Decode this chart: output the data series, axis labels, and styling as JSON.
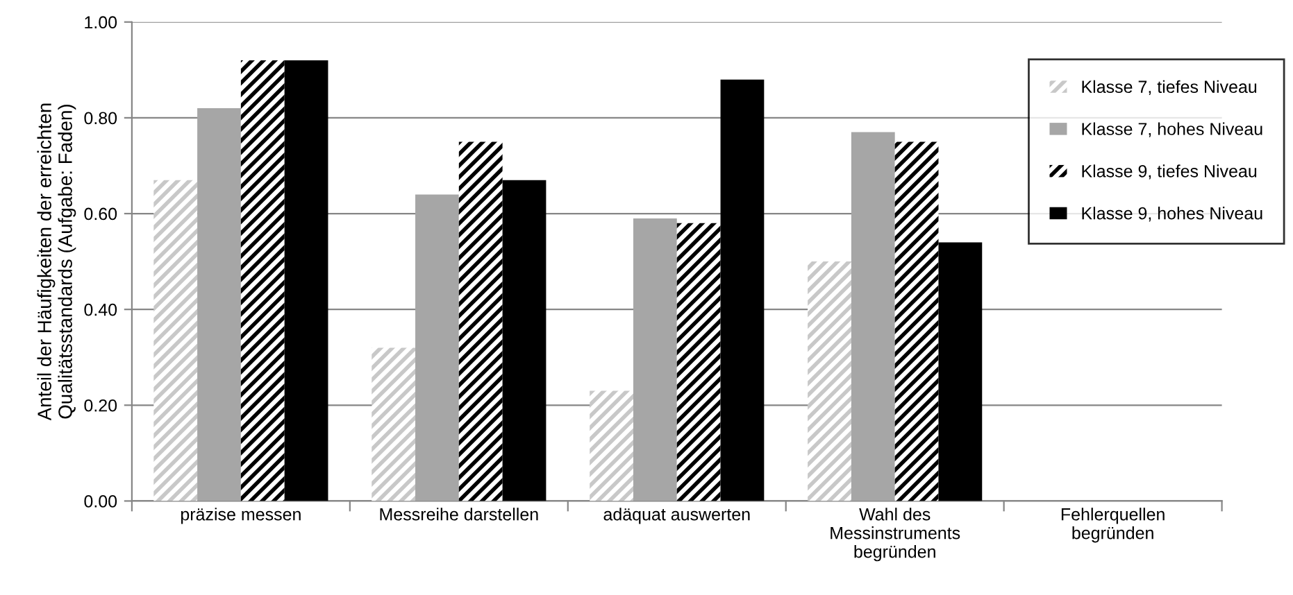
{
  "chart_data": {
    "type": "bar",
    "ylabel": "Anteil der Häufigkeiten der erreichten\nQualitätsstandards (Aufgabe: Faden)",
    "categories": [
      "präzise messen",
      "Messreihe darstellen",
      "adäquat auswerten",
      "Wahl des\nMessinstruments\nbegründen",
      "Fehlerquellen\nbegründen"
    ],
    "series": [
      {
        "name": "Klasse 7, tiefes Niveau",
        "color": "#c8c8c8",
        "values": [
          0.67,
          0.32,
          0.23,
          0.5,
          null
        ]
      },
      {
        "name": "Klasse 7, hohes Niveau",
        "color": "#a6a6a6",
        "values": [
          0.82,
          0.64,
          0.59,
          0.77,
          null
        ]
      },
      {
        "name": "Klasse 9, tiefes Niveau",
        "color": "#000000",
        "values": [
          0.92,
          0.75,
          0.58,
          0.75,
          null
        ]
      },
      {
        "name": "Klasse 9, hohes Niveau",
        "color": "#000000",
        "values": [
          0.92,
          0.67,
          0.88,
          0.54,
          null
        ]
      }
    ],
    "ylim": [
      0,
      1
    ],
    "yticks": [
      {
        "value": 0,
        "label": "0.00"
      },
      {
        "value": 0.2,
        "label": "0.20"
      },
      {
        "value": 0.4,
        "label": "0.40"
      },
      {
        "value": 0.6,
        "label": "0.60"
      },
      {
        "value": 0.8,
        "label": "0.80"
      },
      {
        "value": 1,
        "label": "1.00"
      }
    ],
    "grid": "y",
    "legend": "top right"
  }
}
